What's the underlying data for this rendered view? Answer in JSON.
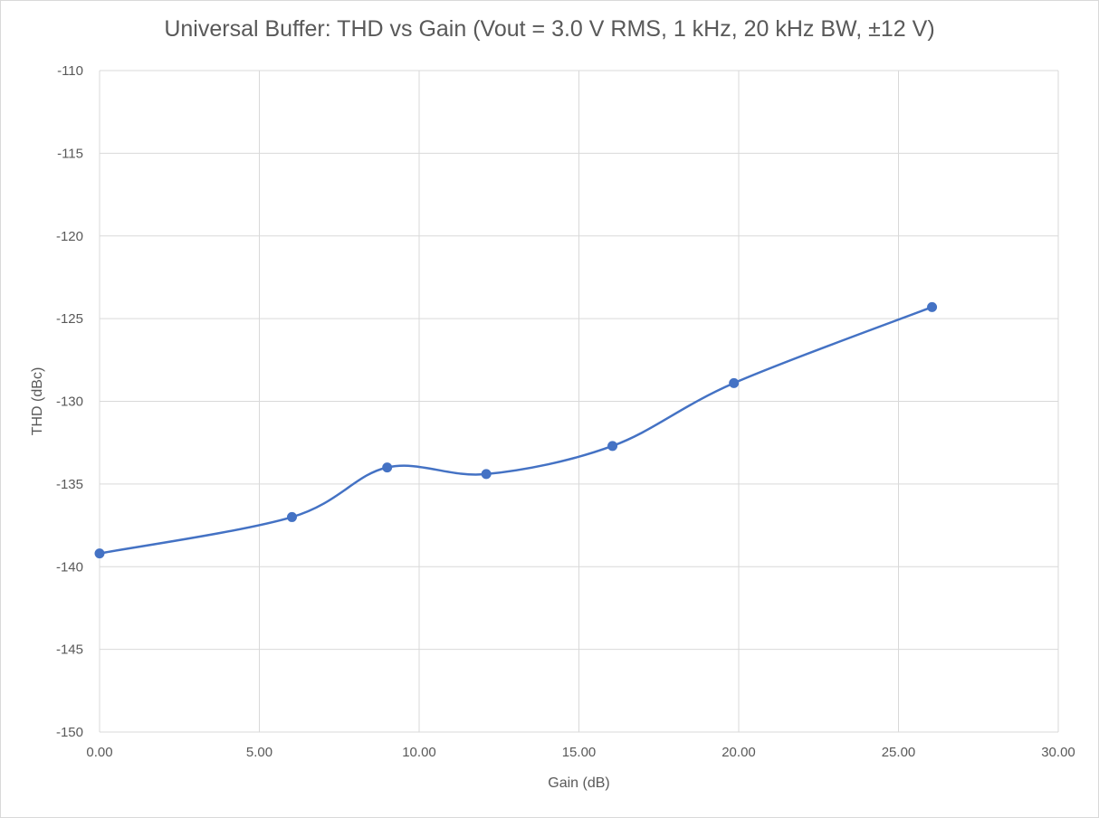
{
  "chart_data": {
    "type": "line",
    "smooth": true,
    "markers": true,
    "title": "Universal Buffer: THD vs Gain (Vout = 3.0 V RMS, 1 kHz, 20 kHz BW, ±12 V)",
    "xlabel": "Gain (dB)",
    "ylabel": "THD (dBc)",
    "xlim": [
      0,
      30
    ],
    "ylim": [
      -150,
      -110
    ],
    "x_ticks": [
      "0.00",
      "5.00",
      "10.00",
      "15.00",
      "20.00",
      "25.00",
      "30.00"
    ],
    "y_ticks": [
      "-110",
      "-115",
      "-120",
      "-125",
      "-130",
      "-135",
      "-140",
      "-145",
      "-150"
    ],
    "grid": true,
    "legend": "none",
    "series": [
      {
        "color": "#4472C4",
        "x": [
          0.0,
          6.02,
          9.0,
          12.1,
          16.05,
          19.85,
          26.05
        ],
        "y": [
          -139.2,
          -137.0,
          -134.0,
          -134.4,
          -132.7,
          -128.9,
          -124.3
        ]
      }
    ]
  }
}
